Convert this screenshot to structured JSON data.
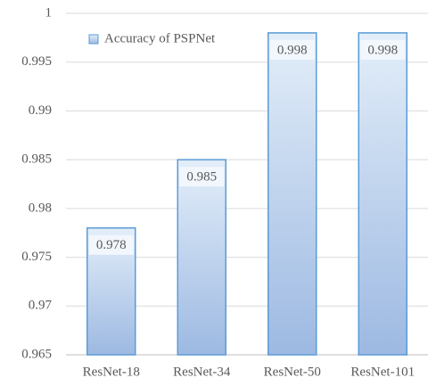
{
  "chart_data": {
    "type": "bar",
    "categories": [
      "ResNet-18",
      "ResNet-34",
      "ResNet-50",
      "ResNet-101"
    ],
    "series": [
      {
        "name": "Accuracy of PSPNet",
        "color": "#5b9bd5",
        "values": [
          0.978,
          0.985,
          0.998,
          0.998
        ]
      }
    ],
    "ylim": [
      0.965,
      1
    ],
    "yticks": [
      0.965,
      0.97,
      0.975,
      0.98,
      0.985,
      0.99,
      0.995,
      1
    ],
    "grid": true,
    "legend": "upper-left",
    "data_labels": true
  }
}
